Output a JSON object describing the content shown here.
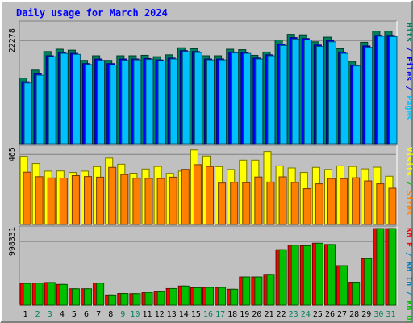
{
  "chart_data": {
    "type": "bar",
    "title": "Daily usage for March 2024",
    "categories": [
      "1",
      "2",
      "3",
      "4",
      "5",
      "6",
      "7",
      "8",
      "9",
      "10",
      "11",
      "12",
      "13",
      "14",
      "15",
      "16",
      "17",
      "18",
      "19",
      "20",
      "21",
      "22",
      "23",
      "24",
      "25",
      "26",
      "27",
      "28",
      "29",
      "30",
      "31"
    ],
    "weekend_days": [
      "2",
      "3",
      "9",
      "10",
      "16",
      "17",
      "23",
      "24",
      "30",
      "31"
    ],
    "colors": {
      "background": "#c0c0c0",
      "frame_light": "#ffffff",
      "frame_dark": "#808080",
      "grid": "#808080",
      "hits": "#00805c",
      "files": "#0000ff",
      "pages": "#00c0ff",
      "visits": "#ffff00",
      "sites": "#ff8000",
      "kb_in": "#0080c0",
      "kb_out": "#00c000",
      "kb_f": "#ff0000",
      "title": "#0000ff",
      "weekday_tick": "#000000",
      "weekend_tick": "#00805c"
    },
    "panels": [
      {
        "ytick_label": "22278",
        "ytick_value": 22278,
        "ymax": 26500,
        "side_labels": [
          {
            "text": "Hits",
            "color_key": "hits"
          },
          {
            "text": " / ",
            "color_key": "files"
          },
          {
            "text": "Files",
            "color_key": "files"
          },
          {
            "text": " / ",
            "color_key": "files"
          },
          {
            "text": "Pages",
            "color_key": "pages"
          }
        ],
        "series": [
          {
            "name": "Hits",
            "color_key": "hits",
            "values": [
              14200,
              15900,
              19900,
              20400,
              20200,
              18000,
              19000,
              18000,
              19000,
              19000,
              19100,
              18800,
              19200,
              20700,
              20500,
              19000,
              19000,
              20400,
              20300,
              19100,
              19800,
              22400,
              23600,
              23500,
              22000,
              23000,
              20500,
              17800,
              21900,
              24300,
              24300
            ]
          },
          {
            "name": "Files",
            "color_key": "files",
            "values": [
              13400,
              15100,
              19000,
              19700,
              19500,
              17300,
              18300,
              17300,
              18300,
              18300,
              18400,
              18100,
              18500,
              20100,
              19900,
              18300,
              18300,
              19800,
              19700,
              18500,
              19200,
              21500,
              22900,
              22700,
              21300,
              22300,
              19800,
              17000,
              21100,
              23400,
              23400
            ]
          },
          {
            "name": "Pages",
            "color_key": "pages",
            "values": [
              13100,
              14800,
              18800,
              19500,
              19300,
              17100,
              18000,
              17000,
              18000,
              18100,
              18200,
              17900,
              18300,
              19900,
              19700,
              18100,
              18100,
              19600,
              19500,
              18300,
              19000,
              21200,
              22600,
              22400,
              21000,
              22000,
              19500,
              16800,
              20800,
              23200,
              23100
            ]
          }
        ]
      },
      {
        "ytick_label": "465",
        "ytick_value": 465,
        "ymax": 525,
        "side_labels": [
          {
            "text": "Visits",
            "color_key": "visits"
          },
          {
            "text": " / ",
            "color_key": "kb_out"
          },
          {
            "text": "Sites",
            "color_key": "sites"
          }
        ],
        "series": [
          {
            "name": "Visits",
            "color_key": "visits",
            "values": [
              452,
              404,
              354,
              355,
              345,
              354,
              384,
              440,
              400,
              340,
              368,
              385,
              339,
              354,
              494,
              454,
              384,
              365,
              427,
              427,
              484,
              389,
              375,
              345,
              379,
              365,
              389,
              385,
              369,
              380,
              320
            ]
          },
          {
            "name": "Sites",
            "color_key": "sites",
            "values": [
              347,
              317,
              309,
              308,
              324,
              318,
              314,
              379,
              331,
              307,
              306,
              305,
              314,
              366,
              397,
              385,
              275,
              280,
              277,
              315,
              282,
              316,
              279,
              238,
              270,
              305,
              304,
              310,
              289,
              270,
              241
            ]
          }
        ]
      },
      {
        "ytick_label": "998331",
        "ytick_value": 998331,
        "ymax": 1240000,
        "side_labels": [
          {
            "text": "KB F",
            "color_key": "kb_f"
          },
          {
            "text": " / ",
            "color_key": "kb_in"
          },
          {
            "text": "KB In",
            "color_key": "kb_in"
          },
          {
            "text": " / ",
            "color_key": "kb_in"
          },
          {
            "text": "KB Out",
            "color_key": "kb_out"
          }
        ],
        "series": [
          {
            "name": "KB F",
            "color_key": "kb_f",
            "values": [
              340000,
              345000,
              355000,
              325000,
              256000,
              256000,
              345000,
              160000,
              183000,
              180000,
              200000,
              220000,
              260000,
              300000,
              273000,
              278000,
              278000,
              249000,
              442000,
              442000,
              483000,
              870000,
              940000,
              930000,
              970000,
              950000,
              620000,
              360000,
              730000,
              1200000,
              1200000
            ]
          },
          {
            "name": "KB Out",
            "color_key": "kb_out",
            "values": [
              340000,
              345000,
              355000,
              325000,
              256000,
              256000,
              345000,
              160000,
              183000,
              180000,
              200000,
              220000,
              260000,
              300000,
              273000,
              278000,
              278000,
              249000,
              442000,
              442000,
              483000,
              870000,
              940000,
              930000,
              970000,
              950000,
              620000,
              360000,
              730000,
              1200000,
              1200000
            ]
          }
        ]
      }
    ]
  }
}
